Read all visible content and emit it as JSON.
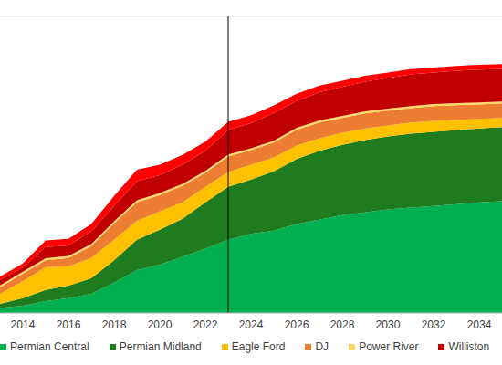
{
  "chart_data": {
    "type": "area",
    "stacked": true,
    "grid": true,
    "tick_labels": "x",
    "x": [
      2013,
      2014,
      2015,
      2016,
      2017,
      2018,
      2019,
      2020,
      2021,
      2022,
      2023,
      2024,
      2025,
      2026,
      2027,
      2028,
      2029,
      2030,
      2031,
      2032,
      2033,
      2034,
      2035
    ],
    "xlim": [
      2013,
      2035
    ],
    "xticks": [
      2014,
      2016,
      2018,
      2020,
      2022,
      2024,
      2026,
      2028,
      2030,
      2032,
      2034
    ],
    "ylim": [
      0,
      9
    ],
    "yticks": [
      0,
      1,
      2,
      3,
      4,
      5,
      6,
      7,
      8,
      9
    ],
    "vline_x": 2023,
    "series": [
      {
        "name": "Permian Central",
        "color": "#00b050",
        "values": [
          0.15,
          0.22,
          0.36,
          0.45,
          0.58,
          0.92,
          1.3,
          1.47,
          1.7,
          1.95,
          2.22,
          2.4,
          2.5,
          2.7,
          2.83,
          2.97,
          3.05,
          3.14,
          3.2,
          3.25,
          3.3,
          3.36,
          3.39
        ]
      },
      {
        "name": "Permian Midland",
        "color": "#1e7b1e",
        "values": [
          0.13,
          0.23,
          0.34,
          0.38,
          0.47,
          0.68,
          0.92,
          1.06,
          1.16,
          1.41,
          1.61,
          1.65,
          1.8,
          1.97,
          2.09,
          2.13,
          2.2,
          2.22,
          2.24,
          2.25,
          2.25,
          2.24,
          2.25
        ]
      },
      {
        "name": "Eagle Ford",
        "color": "#ffc000",
        "values": [
          0.3,
          0.52,
          0.69,
          0.59,
          0.62,
          0.62,
          0.58,
          0.55,
          0.5,
          0.47,
          0.45,
          0.45,
          0.42,
          0.41,
          0.38,
          0.37,
          0.35,
          0.33,
          0.34,
          0.33,
          0.31,
          0.29,
          0.28
        ]
      },
      {
        "name": "DJ",
        "color": "#ed7d31",
        "values": [
          0.2,
          0.22,
          0.21,
          0.25,
          0.36,
          0.5,
          0.56,
          0.5,
          0.5,
          0.42,
          0.47,
          0.44,
          0.45,
          0.48,
          0.48,
          0.45,
          0.46,
          0.45,
          0.44,
          0.45,
          0.45,
          0.44,
          0.44
        ]
      },
      {
        "name": "Power River",
        "color": "#ffd966",
        "values": [
          0.06,
          0.06,
          0.06,
          0.06,
          0.06,
          0.06,
          0.06,
          0.06,
          0.06,
          0.06,
          0.06,
          0.06,
          0.06,
          0.06,
          0.06,
          0.06,
          0.06,
          0.06,
          0.06,
          0.06,
          0.06,
          0.06,
          0.06
        ]
      },
      {
        "name": "Williston",
        "color": "#c00000",
        "values": [
          0.16,
          0.13,
          0.34,
          0.32,
          0.39,
          0.47,
          0.58,
          0.54,
          0.58,
          0.61,
          0.74,
          0.76,
          0.84,
          0.81,
          0.86,
          0.88,
          0.9,
          0.93,
          0.96,
          0.96,
          0.98,
          1.0,
          0.99
        ]
      },
      {
        "color": "#ff0000",
        "values": [
          0.1,
          0.12,
          0.2,
          0.2,
          0.22,
          0.3,
          0.35,
          0.32,
          0.3,
          0.28,
          0.25,
          0.24,
          0.23,
          0.22,
          0.2,
          0.19,
          0.18,
          0.17,
          0.16,
          0.15,
          0.15,
          0.14,
          0.14
        ]
      }
    ]
  }
}
